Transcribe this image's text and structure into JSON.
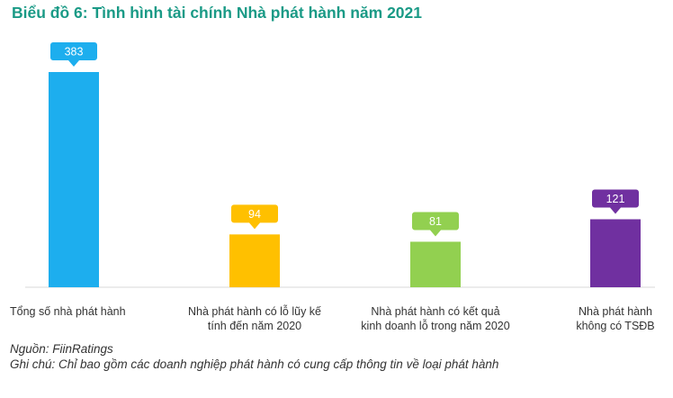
{
  "chart_data": {
    "type": "bar",
    "title": "Biểu đồ 6: Tình hình tài chính Nhà phát hành năm 2021",
    "categories": [
      "Tổng số nhà phát hành",
      "Nhà phát hành có lỗ lũy kế\ntính đến năm 2020",
      "Nhà phát hành có kết quả\nkinh doanh lỗ trong năm 2020",
      "Nhà phát hành\nkhông có TSĐB"
    ],
    "values": [
      383,
      94,
      81,
      121
    ],
    "colors": [
      "#1daeee",
      "#ffc000",
      "#92d050",
      "#7030a0"
    ],
    "ylim": [
      0,
      400
    ],
    "grid": false,
    "legend": "none",
    "xlabel": "",
    "ylabel": ""
  },
  "footer": {
    "source": "Nguồn: FiinRatings",
    "note": "Ghi chú: Chỉ bao gồm các doanh nghiệp phát hành có cung cấp thông tin về loại phát hành"
  }
}
